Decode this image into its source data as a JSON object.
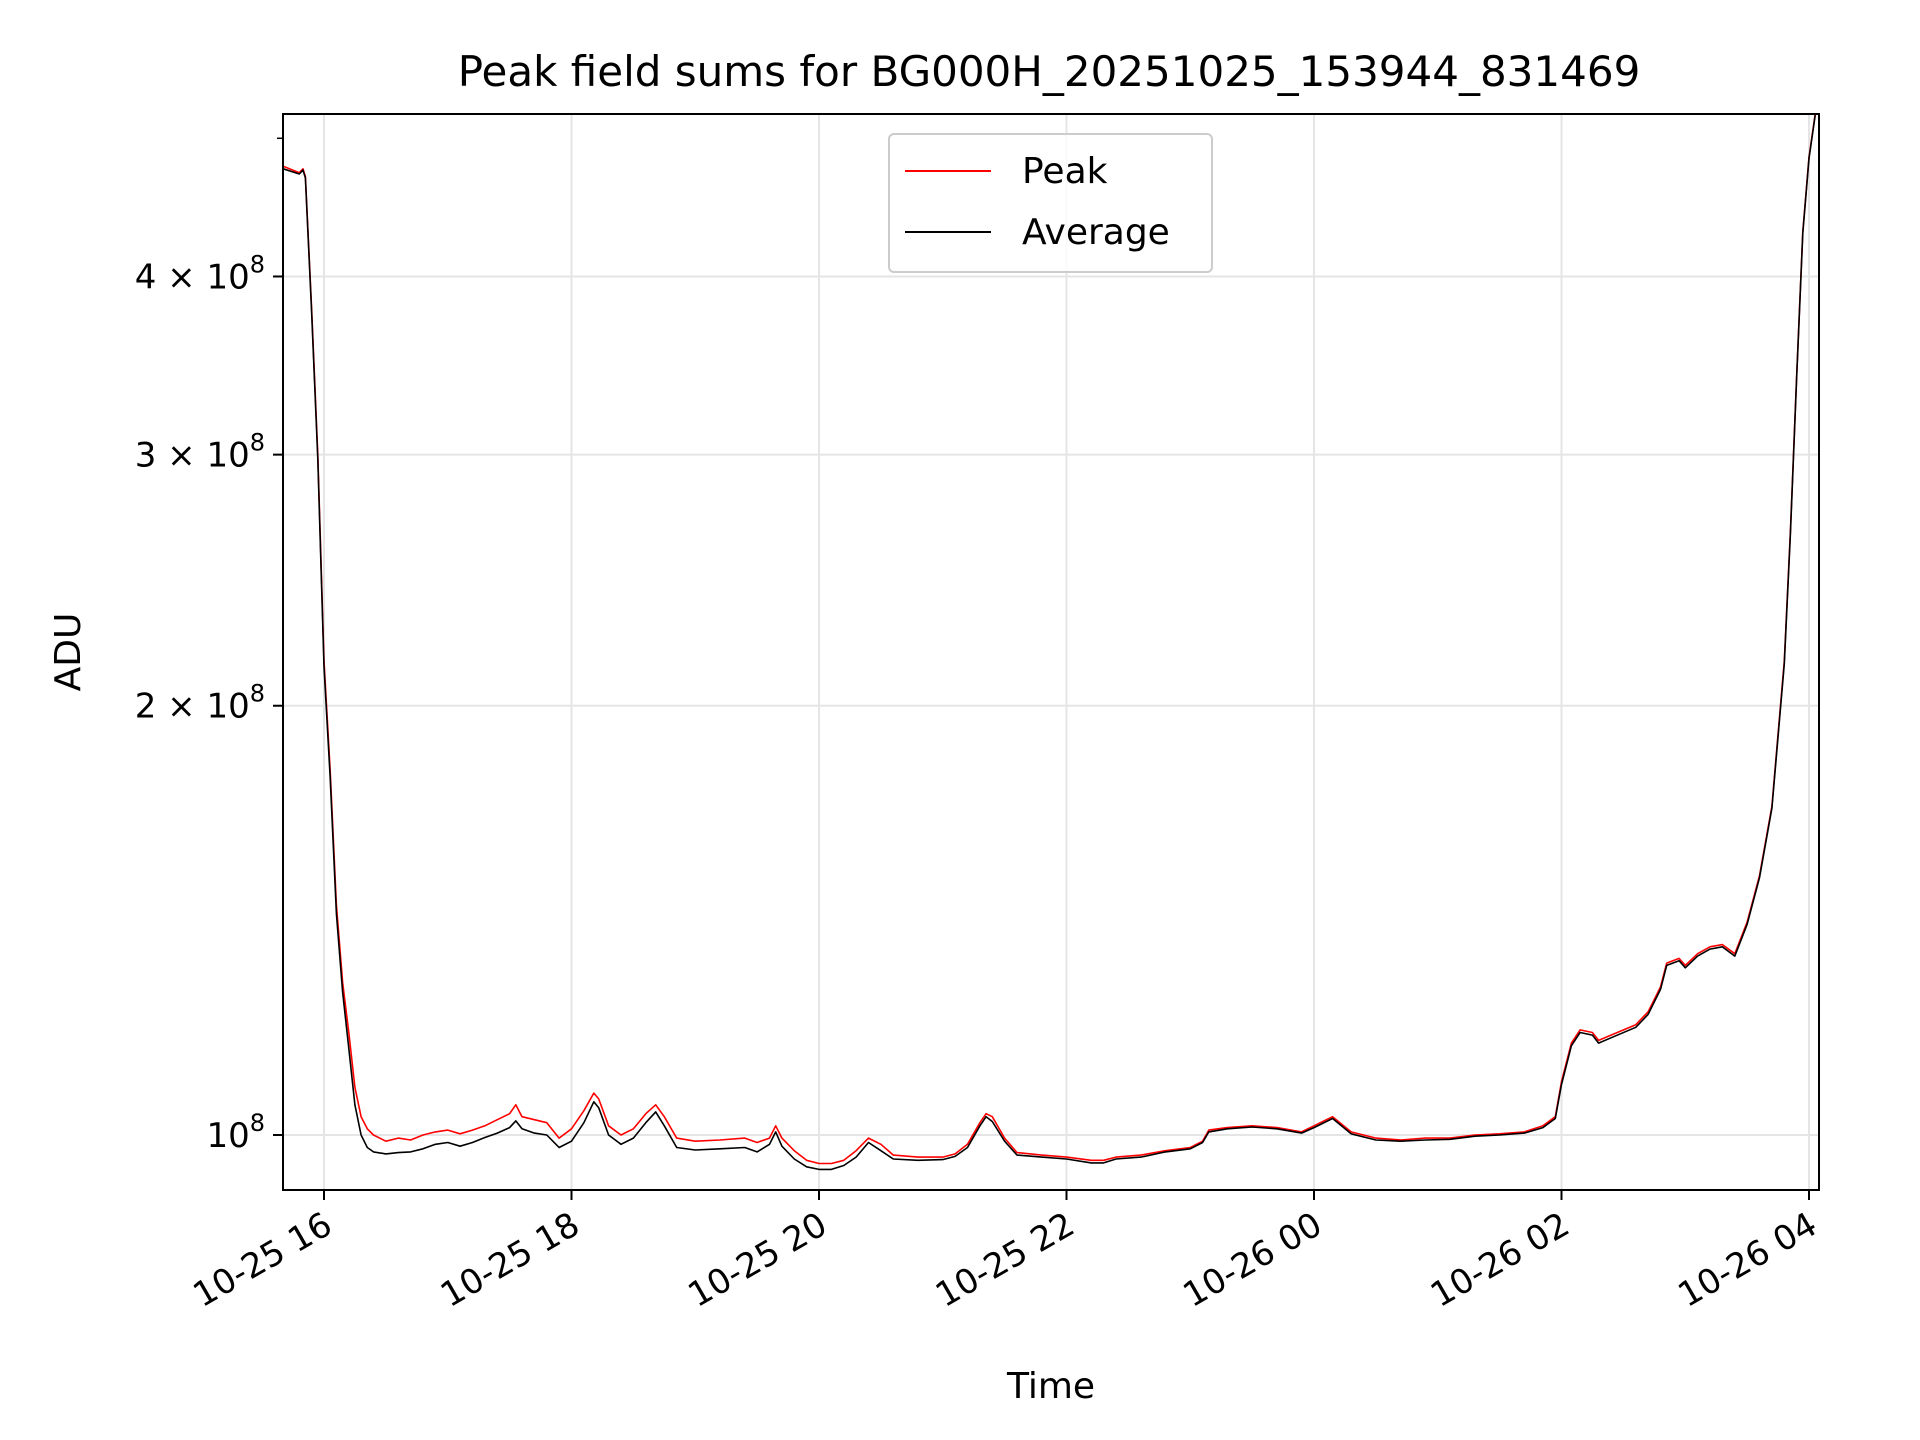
{
  "chart_data": {
    "type": "line",
    "title": "Peak field sums for BG000H_20251025_153944_831469",
    "xlabel": "Time",
    "ylabel": "ADU",
    "yscale": "log",
    "ylim": [
      91500000,
      520000000
    ],
    "xlim_hours": [
      -0.33,
      12.05
    ],
    "grid": true,
    "legend_position": "upper center",
    "x_ticks": [
      {
        "hour": 0,
        "label": "10-25 16"
      },
      {
        "hour": 2,
        "label": "10-25 18"
      },
      {
        "hour": 4,
        "label": "10-25 20"
      },
      {
        "hour": 6,
        "label": "10-25 22"
      },
      {
        "hour": 8,
        "label": "10-26 00"
      },
      {
        "hour": 10,
        "label": "10-26 02"
      },
      {
        "hour": 12,
        "label": "10-26 04"
      }
    ],
    "y_ticks": [
      {
        "value": 100000000,
        "base": "10",
        "exp": "8",
        "mant": ""
      },
      {
        "value": 200000000,
        "base": "2 × 10",
        "exp": "8",
        "mant": "2"
      },
      {
        "value": 300000000,
        "base": "3 × 10",
        "exp": "8",
        "mant": "3"
      },
      {
        "value": 400000000,
        "base": "4 × 10",
        "exp": "8",
        "mant": "4"
      }
    ],
    "series": [
      {
        "name": "Peak",
        "color": "#ff0000",
        "values_mADU_at_hours": [
          [
            -0.33,
            478
          ],
          [
            -0.2,
            473
          ],
          [
            -0.17,
            476
          ],
          [
            -0.15,
            470
          ],
          [
            -0.1,
            380
          ],
          [
            -0.05,
            300
          ],
          [
            0.0,
            215
          ],
          [
            0.05,
            180
          ],
          [
            0.1,
            145
          ],
          [
            0.15,
            128
          ],
          [
            0.2,
            118
          ],
          [
            0.25,
            108
          ],
          [
            0.3,
            103
          ],
          [
            0.35,
            101
          ],
          [
            0.4,
            100
          ],
          [
            0.5,
            99
          ],
          [
            0.6,
            99.5
          ],
          [
            0.7,
            99.2
          ],
          [
            0.8,
            100
          ],
          [
            0.9,
            100.5
          ],
          [
            1.0,
            100.8
          ],
          [
            1.1,
            100.2
          ],
          [
            1.2,
            100.8
          ],
          [
            1.3,
            101.5
          ],
          [
            1.4,
            102.5
          ],
          [
            1.5,
            103.5
          ],
          [
            1.55,
            105
          ],
          [
            1.6,
            103
          ],
          [
            1.7,
            102.5
          ],
          [
            1.8,
            102
          ],
          [
            1.9,
            99.5
          ],
          [
            2.0,
            101
          ],
          [
            2.1,
            104
          ],
          [
            2.18,
            107
          ],
          [
            2.22,
            106
          ],
          [
            2.3,
            101.5
          ],
          [
            2.4,
            100
          ],
          [
            2.5,
            101
          ],
          [
            2.6,
            103.5
          ],
          [
            2.68,
            105
          ],
          [
            2.75,
            103
          ],
          [
            2.85,
            99.5
          ],
          [
            3.0,
            99
          ],
          [
            3.2,
            99.2
          ],
          [
            3.4,
            99.5
          ],
          [
            3.5,
            98.8
          ],
          [
            3.6,
            99.5
          ],
          [
            3.65,
            101.5
          ],
          [
            3.7,
            99.5
          ],
          [
            3.8,
            97.5
          ],
          [
            3.9,
            96
          ],
          [
            4.0,
            95.5
          ],
          [
            4.1,
            95.5
          ],
          [
            4.2,
            96
          ],
          [
            4.3,
            97.5
          ],
          [
            4.4,
            99.5
          ],
          [
            4.5,
            98.5
          ],
          [
            4.6,
            96.8
          ],
          [
            4.8,
            96.5
          ],
          [
            5.0,
            96.5
          ],
          [
            5.1,
            97
          ],
          [
            5.2,
            98.5
          ],
          [
            5.3,
            102
          ],
          [
            5.35,
            103.5
          ],
          [
            5.4,
            103
          ],
          [
            5.5,
            99.5
          ],
          [
            5.6,
            97.2
          ],
          [
            5.8,
            96.8
          ],
          [
            6.0,
            96.5
          ],
          [
            6.2,
            96
          ],
          [
            6.3,
            96
          ],
          [
            6.4,
            96.5
          ],
          [
            6.6,
            96.8
          ],
          [
            6.8,
            97.5
          ],
          [
            7.0,
            98
          ],
          [
            7.1,
            99
          ],
          [
            7.15,
            100.8
          ],
          [
            7.3,
            101.2
          ],
          [
            7.5,
            101.5
          ],
          [
            7.7,
            101.2
          ],
          [
            7.9,
            100.5
          ],
          [
            8.0,
            101.5
          ],
          [
            8.1,
            102.5
          ],
          [
            8.15,
            103
          ],
          [
            8.3,
            100.5
          ],
          [
            8.5,
            99.5
          ],
          [
            8.7,
            99.2
          ],
          [
            8.9,
            99.5
          ],
          [
            9.1,
            99.5
          ],
          [
            9.3,
            100
          ],
          [
            9.5,
            100.2
          ],
          [
            9.7,
            100.5
          ],
          [
            9.85,
            101.5
          ],
          [
            9.95,
            103
          ],
          [
            10.0,
            109
          ],
          [
            10.08,
            116
          ],
          [
            10.15,
            118.5
          ],
          [
            10.25,
            118
          ],
          [
            10.3,
            116.5
          ],
          [
            10.4,
            117.5
          ],
          [
            10.6,
            119.5
          ],
          [
            10.7,
            122
          ],
          [
            10.8,
            127
          ],
          [
            10.85,
            132
          ],
          [
            10.95,
            133
          ],
          [
            11.0,
            131.5
          ],
          [
            11.1,
            134
          ],
          [
            11.2,
            135.5
          ],
          [
            11.3,
            136
          ],
          [
            11.4,
            134
          ],
          [
            11.5,
            141
          ],
          [
            11.6,
            152
          ],
          [
            11.7,
            170
          ],
          [
            11.8,
            215
          ],
          [
            11.85,
            265
          ],
          [
            11.9,
            340
          ],
          [
            11.95,
            430
          ],
          [
            12.0,
            485
          ],
          [
            12.05,
            520
          ]
        ]
      },
      {
        "name": "Average",
        "color": "#000000",
        "values_mADU_at_hours": [
          [
            -0.33,
            476
          ],
          [
            -0.2,
            472
          ],
          [
            -0.17,
            475
          ],
          [
            -0.15,
            469
          ],
          [
            -0.1,
            378
          ],
          [
            -0.05,
            298
          ],
          [
            0.0,
            213
          ],
          [
            0.05,
            178
          ],
          [
            0.1,
            143
          ],
          [
            0.15,
            126
          ],
          [
            0.2,
            115
          ],
          [
            0.25,
            105
          ],
          [
            0.3,
            100
          ],
          [
            0.35,
            98
          ],
          [
            0.4,
            97.3
          ],
          [
            0.5,
            97
          ],
          [
            0.6,
            97.2
          ],
          [
            0.7,
            97.3
          ],
          [
            0.8,
            97.8
          ],
          [
            0.9,
            98.5
          ],
          [
            1.0,
            98.8
          ],
          [
            1.1,
            98.2
          ],
          [
            1.2,
            98.8
          ],
          [
            1.3,
            99.6
          ],
          [
            1.4,
            100.3
          ],
          [
            1.5,
            101.2
          ],
          [
            1.55,
            102.3
          ],
          [
            1.6,
            101
          ],
          [
            1.7,
            100.3
          ],
          [
            1.8,
            100
          ],
          [
            1.9,
            98
          ],
          [
            2.0,
            99
          ],
          [
            2.1,
            102
          ],
          [
            2.18,
            105.5
          ],
          [
            2.22,
            104.5
          ],
          [
            2.3,
            100
          ],
          [
            2.4,
            98.5
          ],
          [
            2.5,
            99.5
          ],
          [
            2.6,
            102
          ],
          [
            2.68,
            103.8
          ],
          [
            2.75,
            101.5
          ],
          [
            2.85,
            98
          ],
          [
            3.0,
            97.6
          ],
          [
            3.2,
            97.8
          ],
          [
            3.4,
            98
          ],
          [
            3.5,
            97.3
          ],
          [
            3.6,
            98.5
          ],
          [
            3.65,
            100.5
          ],
          [
            3.7,
            98.2
          ],
          [
            3.8,
            96.2
          ],
          [
            3.9,
            95
          ],
          [
            4.0,
            94.6
          ],
          [
            4.1,
            94.6
          ],
          [
            4.2,
            95.2
          ],
          [
            4.3,
            96.5
          ],
          [
            4.4,
            98.8
          ],
          [
            4.5,
            97.5
          ],
          [
            4.6,
            96.2
          ],
          [
            4.8,
            96
          ],
          [
            5.0,
            96.1
          ],
          [
            5.1,
            96.6
          ],
          [
            5.2,
            98
          ],
          [
            5.3,
            101.5
          ],
          [
            5.35,
            103
          ],
          [
            5.4,
            102.2
          ],
          [
            5.5,
            99
          ],
          [
            5.6,
            96.8
          ],
          [
            5.8,
            96.5
          ],
          [
            6.0,
            96.2
          ],
          [
            6.2,
            95.6
          ],
          [
            6.3,
            95.6
          ],
          [
            6.4,
            96.2
          ],
          [
            6.6,
            96.5
          ],
          [
            6.8,
            97.3
          ],
          [
            7.0,
            97.8
          ],
          [
            7.1,
            98.8
          ],
          [
            7.15,
            100.5
          ],
          [
            7.3,
            101
          ],
          [
            7.5,
            101.3
          ],
          [
            7.7,
            101
          ],
          [
            7.9,
            100.3
          ],
          [
            8.0,
            101.2
          ],
          [
            8.1,
            102.2
          ],
          [
            8.15,
            102.7
          ],
          [
            8.3,
            100.2
          ],
          [
            8.5,
            99.2
          ],
          [
            8.7,
            99
          ],
          [
            8.9,
            99.2
          ],
          [
            9.1,
            99.3
          ],
          [
            9.3,
            99.8
          ],
          [
            9.5,
            100
          ],
          [
            9.7,
            100.3
          ],
          [
            9.85,
            101.2
          ],
          [
            9.95,
            102.7
          ],
          [
            10.0,
            108.5
          ],
          [
            10.08,
            115.5
          ],
          [
            10.15,
            118
          ],
          [
            10.25,
            117.5
          ],
          [
            10.3,
            116
          ],
          [
            10.4,
            117
          ],
          [
            10.6,
            119
          ],
          [
            10.7,
            121.5
          ],
          [
            10.8,
            126.5
          ],
          [
            10.85,
            131.5
          ],
          [
            10.95,
            132.5
          ],
          [
            11.0,
            131
          ],
          [
            11.1,
            133.5
          ],
          [
            11.2,
            135
          ],
          [
            11.3,
            135.5
          ],
          [
            11.4,
            133.5
          ],
          [
            11.5,
            140.5
          ],
          [
            11.6,
            151.5
          ],
          [
            11.7,
            169.5
          ],
          [
            11.8,
            214
          ],
          [
            11.85,
            264
          ],
          [
            11.9,
            339
          ],
          [
            11.95,
            429
          ],
          [
            12.0,
            484
          ],
          [
            12.05,
            519
          ]
        ]
      }
    ]
  }
}
